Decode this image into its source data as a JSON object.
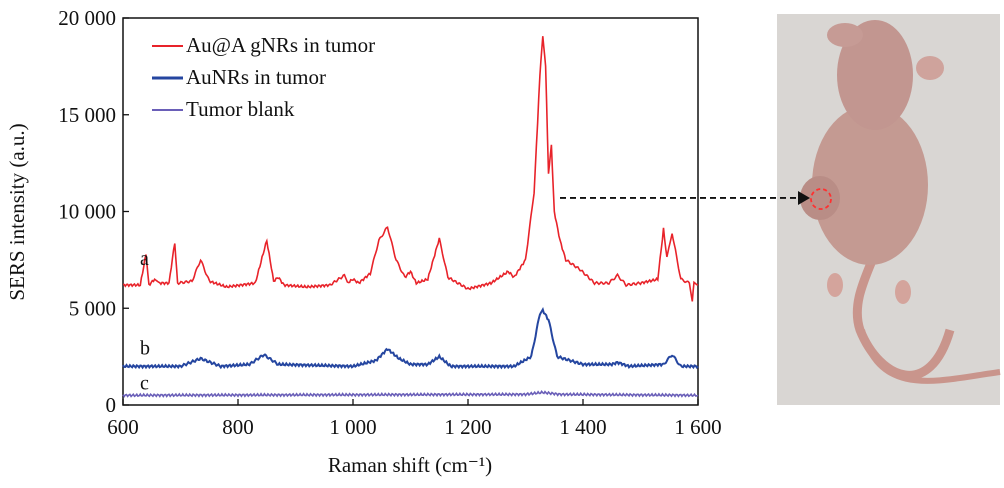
{
  "chart_data": {
    "type": "line",
    "xlabel": "Raman shift (cm⁻¹)",
    "ylabel": "SERS intensity (a.u.)",
    "xlim": [
      600,
      1600
    ],
    "ylim": [
      0,
      20000
    ],
    "xticks": [
      600,
      800,
      1000,
      1200,
      1400,
      1600
    ],
    "xtick_labels": [
      "600",
      "800",
      "1 000",
      "1 200",
      "1 400",
      "1 600"
    ],
    "yticks": [
      0,
      5000,
      10000,
      15000,
      20000
    ],
    "ytick_labels": [
      "0",
      "5 000",
      "10 000",
      "15 000",
      "20 000"
    ],
    "grid": false,
    "legend_position": "top-left",
    "series": [
      {
        "name": "Au@A gNRs in tumor",
        "curve_label": "a",
        "color": "#e8232a",
        "points": [
          [
            600,
            6200
          ],
          [
            630,
            6200
          ],
          [
            640,
            7800
          ],
          [
            645,
            6200
          ],
          [
            655,
            6500
          ],
          [
            662,
            6300
          ],
          [
            680,
            6300
          ],
          [
            690,
            8400
          ],
          [
            695,
            6300
          ],
          [
            720,
            6400
          ],
          [
            735,
            7500
          ],
          [
            750,
            6400
          ],
          [
            780,
            6100
          ],
          [
            830,
            6300
          ],
          [
            850,
            8500
          ],
          [
            862,
            6400
          ],
          [
            870,
            6600
          ],
          [
            880,
            6200
          ],
          [
            920,
            6100
          ],
          [
            960,
            6200
          ],
          [
            985,
            6700
          ],
          [
            990,
            6300
          ],
          [
            1000,
            6500
          ],
          [
            1010,
            6300
          ],
          [
            1030,
            6800
          ],
          [
            1045,
            8500
          ],
          [
            1060,
            9200
          ],
          [
            1075,
            7500
          ],
          [
            1090,
            6600
          ],
          [
            1100,
            6900
          ],
          [
            1110,
            6300
          ],
          [
            1130,
            6500
          ],
          [
            1150,
            8600
          ],
          [
            1165,
            6600
          ],
          [
            1200,
            6000
          ],
          [
            1240,
            6300
          ],
          [
            1260,
            6700
          ],
          [
            1270,
            6900
          ],
          [
            1280,
            6600
          ],
          [
            1300,
            7500
          ],
          [
            1315,
            11000
          ],
          [
            1325,
            17000
          ],
          [
            1330,
            19000
          ],
          [
            1335,
            17500
          ],
          [
            1340,
            12000
          ],
          [
            1345,
            13500
          ],
          [
            1350,
            10000
          ],
          [
            1360,
            8500
          ],
          [
            1370,
            7500
          ],
          [
            1395,
            7000
          ],
          [
            1420,
            6300
          ],
          [
            1445,
            6300
          ],
          [
            1460,
            6700
          ],
          [
            1475,
            6200
          ],
          [
            1500,
            6300
          ],
          [
            1530,
            6500
          ],
          [
            1540,
            9100
          ],
          [
            1546,
            7600
          ],
          [
            1555,
            8900
          ],
          [
            1570,
            6500
          ],
          [
            1585,
            6300
          ],
          [
            1590,
            5300
          ],
          [
            1593,
            6400
          ],
          [
            1600,
            6200
          ]
        ]
      },
      {
        "name": "AuNRs in tumor",
        "curve_label": "b",
        "color": "#2546a0",
        "points": [
          [
            600,
            2000
          ],
          [
            700,
            2000
          ],
          [
            735,
            2400
          ],
          [
            770,
            2000
          ],
          [
            820,
            2100
          ],
          [
            845,
            2600
          ],
          [
            870,
            2100
          ],
          [
            1000,
            2000
          ],
          [
            1040,
            2300
          ],
          [
            1060,
            2900
          ],
          [
            1080,
            2400
          ],
          [
            1100,
            2100
          ],
          [
            1130,
            2100
          ],
          [
            1150,
            2500
          ],
          [
            1170,
            2000
          ],
          [
            1280,
            2000
          ],
          [
            1310,
            2500
          ],
          [
            1325,
            4700
          ],
          [
            1330,
            4900
          ],
          [
            1340,
            4400
          ],
          [
            1355,
            2500
          ],
          [
            1400,
            2100
          ],
          [
            1450,
            2100
          ],
          [
            1460,
            2200
          ],
          [
            1480,
            2000
          ],
          [
            1540,
            2100
          ],
          [
            1555,
            2600
          ],
          [
            1570,
            2000
          ],
          [
            1600,
            2000
          ]
        ]
      },
      {
        "name": "Tumor blank",
        "curve_label": "c",
        "color": "#6a5fb8",
        "points": [
          [
            600,
            500
          ],
          [
            1300,
            550
          ],
          [
            1330,
            650
          ],
          [
            1360,
            550
          ],
          [
            1600,
            500
          ]
        ]
      }
    ],
    "annotation": {
      "type": "dashed-arrow",
      "from_x": 1360,
      "at_y": 10700,
      "target": "tumor site in mouse photo"
    }
  }
}
